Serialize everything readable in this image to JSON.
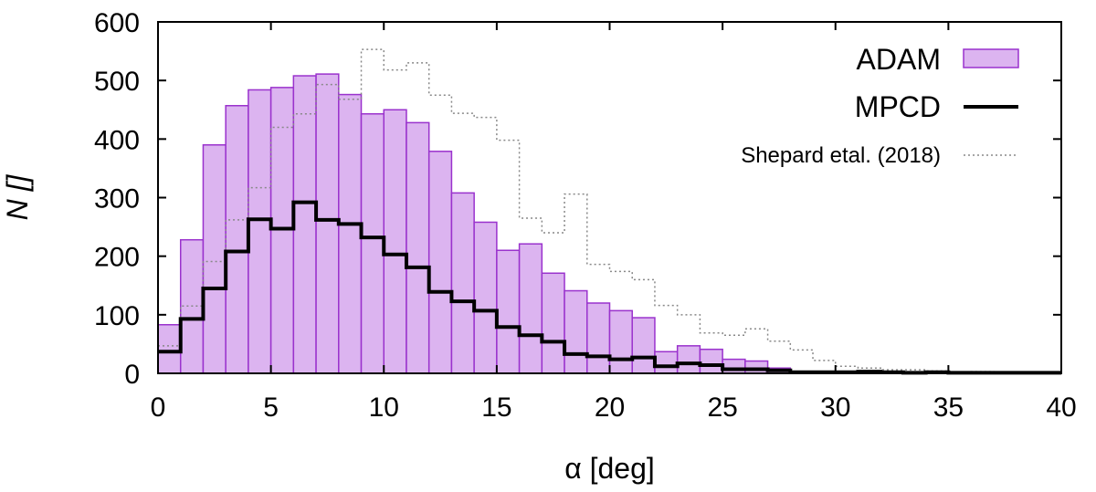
{
  "chart_data": {
    "type": "bar",
    "title": "",
    "xlabel": "α [deg]",
    "ylabel": "N []",
    "xlim": [
      0,
      40
    ],
    "ylim": [
      0,
      600
    ],
    "xticks": [
      "0",
      "5",
      "10",
      "15",
      "20",
      "25",
      "30",
      "35",
      "40"
    ],
    "yticks": [
      "0",
      "100",
      "200",
      "300",
      "400",
      "500",
      "600"
    ],
    "bin_width": 1,
    "bin_edges_start": 0,
    "legend_position": "top-right",
    "series": [
      {
        "name": "ADAM",
        "style": "filled-bars",
        "color": "#dcb4f0",
        "edge_color": "#9a32cd",
        "values": [
          83,
          228,
          390,
          457,
          484,
          488,
          508,
          511,
          476,
          443,
          450,
          428,
          379,
          308,
          258,
          210,
          221,
          171,
          141,
          120,
          107,
          95,
          37,
          47,
          41,
          24,
          21,
          9,
          3,
          2,
          2,
          3,
          2,
          1,
          1,
          1,
          1,
          1,
          1,
          1
        ]
      },
      {
        "name": "MPCD",
        "style": "thick-step",
        "color": "#000000",
        "values": [
          37,
          93,
          145,
          208,
          263,
          247,
          292,
          262,
          255,
          232,
          203,
          181,
          139,
          123,
          107,
          79,
          65,
          54,
          33,
          29,
          24,
          27,
          12,
          17,
          14,
          7,
          7,
          5,
          2,
          2,
          2,
          3,
          2,
          1,
          2,
          1,
          1,
          1,
          1,
          1
        ]
      },
      {
        "name": "Shepard etal. (2018)",
        "style": "dotted-step",
        "color": "#888888",
        "values": [
          47,
          115,
          191,
          262,
          317,
          420,
          443,
          493,
          468,
          553,
          518,
          530,
          475,
          444,
          437,
          398,
          265,
          240,
          306,
          186,
          174,
          160,
          116,
          100,
          69,
          65,
          76,
          55,
          40,
          22,
          12,
          9,
          6,
          6,
          4,
          2,
          3,
          2,
          1,
          1
        ]
      }
    ]
  }
}
